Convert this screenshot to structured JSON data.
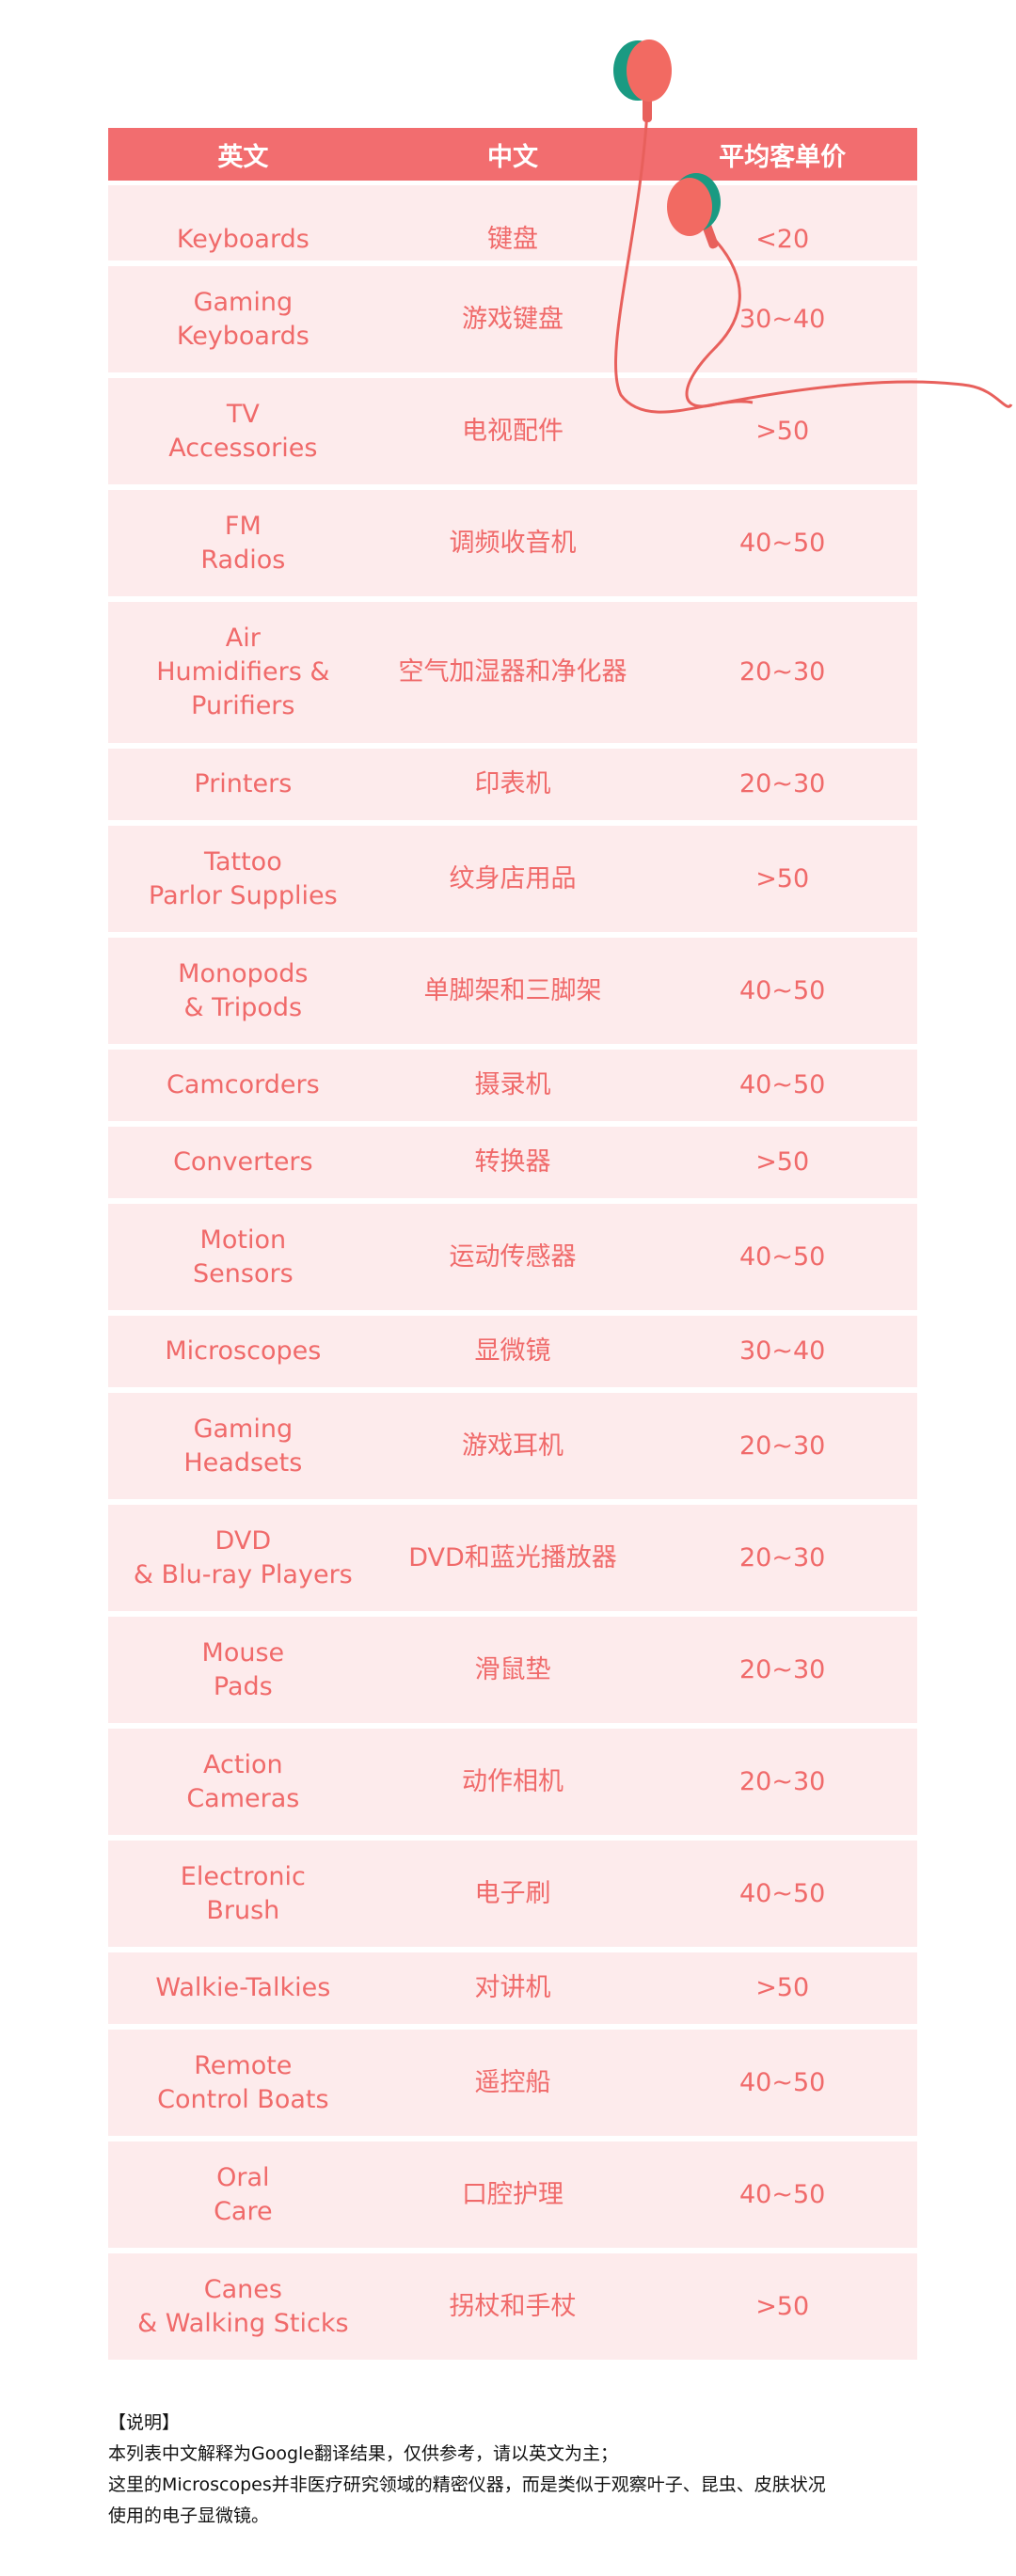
{
  "table": {
    "headers": [
      "英文",
      "中文",
      "平均客单价"
    ],
    "rows": [
      {
        "en": "Keyboards",
        "zh": "键盘",
        "price": "<20"
      },
      {
        "en": "Gaming\nKeyboards",
        "zh": "游戏键盘",
        "price": "30~40"
      },
      {
        "en": "TV\nAccessories",
        "zh": "电视配件",
        "price": ">50"
      },
      {
        "en": "FM\nRadios",
        "zh": "调频收音机",
        "price": "40~50"
      },
      {
        "en": "Air\nHumidifiers &\nPurifiers",
        "zh": "空气加湿器和净化器",
        "price": "20~30"
      },
      {
        "en": "Printers",
        "zh": "印表机",
        "price": "20~30"
      },
      {
        "en": "Tattoo\nParlor Supplies",
        "zh": "纹身店用品",
        "price": ">50"
      },
      {
        "en": "Monopods\n& Tripods",
        "zh": "单脚架和三脚架",
        "price": "40~50"
      },
      {
        "en": "Camcorders",
        "zh": "摄录机",
        "price": "40~50"
      },
      {
        "en": "Converters",
        "zh": "转换器",
        "price": ">50"
      },
      {
        "en": "Motion\nSensors",
        "zh": "运动传感器",
        "price": "40~50"
      },
      {
        "en": "Microscopes",
        "zh": "显微镜",
        "price": "30~40"
      },
      {
        "en": "Gaming\nHeadsets",
        "zh": "游戏耳机",
        "price": "20~30"
      },
      {
        "en": "DVD\n& Blu-ray Players",
        "zh": "DVD和蓝光播放器",
        "price": "20~30"
      },
      {
        "en": "Mouse\nPads",
        "zh": "滑鼠垫",
        "price": "20~30"
      },
      {
        "en": "Action\nCameras",
        "zh": "动作相机",
        "price": "20~30"
      },
      {
        "en": "Electronic\nBrush",
        "zh": "电子刷",
        "price": "40~50"
      },
      {
        "en": "Walkie-Talkies",
        "zh": "对讲机",
        "price": ">50"
      },
      {
        "en": "Remote\nControl Boats",
        "zh": "遥控船",
        "price": "40~50"
      },
      {
        "en": "Oral\nCare",
        "zh": "口腔护理",
        "price": "40~50"
      },
      {
        "en": "Canes\n& Walking Sticks",
        "zh": "拐杖和手杖",
        "price": ">50"
      }
    ]
  },
  "note": {
    "title": "【说明】",
    "lines": [
      "本列表中文解释为Google翻译结果，仅供参考，请以英文为主；",
      "这里的Microscopes并非医疗研究领域的精密仪器，而是类似于观察叶子、昆虫、皮肤状况",
      "使用的电子显微镜。"
    ]
  },
  "colors": {
    "header": "#f26d6f",
    "row_bg": "#fdebec",
    "text": "#f06a6a",
    "earbud_accent": "#1a9a82"
  },
  "decoration": {
    "icon": "earphones-icon"
  }
}
